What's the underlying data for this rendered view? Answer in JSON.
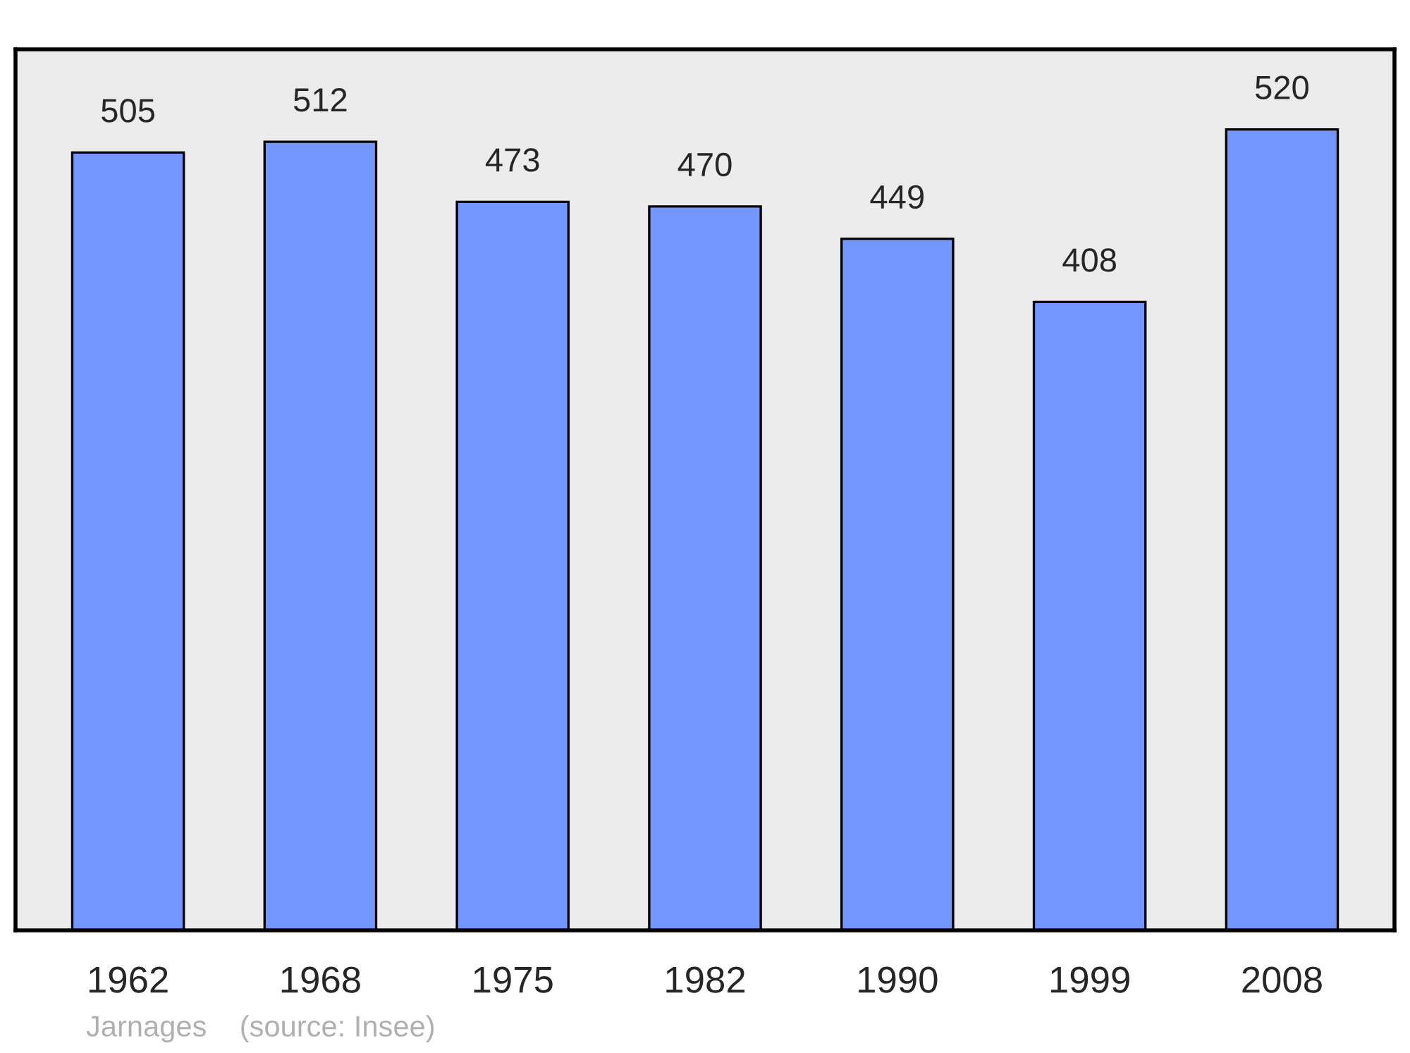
{
  "chart_data": {
    "type": "bar",
    "categories": [
      "1962",
      "1968",
      "1975",
      "1982",
      "1990",
      "1999",
      "2008"
    ],
    "values": [
      505,
      512,
      473,
      470,
      449,
      408,
      520
    ],
    "color": "#7397ff",
    "data_labels": true,
    "tick_labels": "x",
    "grid": false,
    "annotations": [
      "Jarnages    (source: Insee)"
    ]
  }
}
